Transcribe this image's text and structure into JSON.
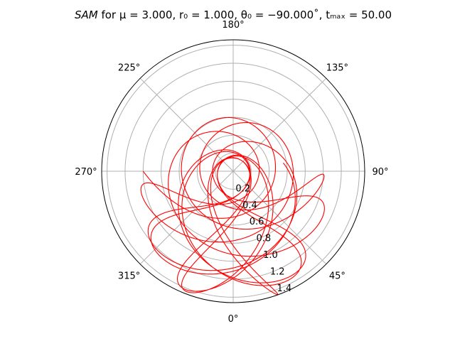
{
  "chart_data": {
    "type": "polar-line",
    "title": {
      "prefix": "SAM",
      "mu_label": "μ = 3.000",
      "r0_label": "r₀ = 1.000",
      "theta0_label": "θ₀ = −90.000˚",
      "tmax_label": "tₘₐₓ = 50.00"
    },
    "params": {
      "mu": 3.0,
      "r0": 1.0,
      "theta0_deg": -90.0,
      "tmax": 50.0
    },
    "theta_zero_location": "bottom",
    "theta_direction": "counterclockwise",
    "theta_ticks": [
      {
        "deg": 0,
        "label": "0°"
      },
      {
        "deg": 45,
        "label": "45°"
      },
      {
        "deg": 90,
        "label": "90°"
      },
      {
        "deg": 135,
        "label": "135°"
      },
      {
        "deg": 180,
        "label": "180°"
      },
      {
        "deg": 225,
        "label": "225°"
      },
      {
        "deg": 270,
        "label": "270°"
      },
      {
        "deg": 315,
        "label": "315°"
      }
    ],
    "r_ticks": [
      {
        "value": 0.2,
        "label": "0.2"
      },
      {
        "value": 0.4,
        "label": "0.4"
      },
      {
        "value": 0.6,
        "label": "0.6"
      },
      {
        "value": 0.8,
        "label": "0.8"
      },
      {
        "value": 1.0,
        "label": "1.0"
      },
      {
        "value": 1.2,
        "label": "1.2"
      },
      {
        "value": 1.4,
        "label": "1.4"
      }
    ],
    "rlim": [
      0,
      1.46
    ],
    "grid": true,
    "series": [
      {
        "color": "#ff0000"
      }
    ]
  }
}
